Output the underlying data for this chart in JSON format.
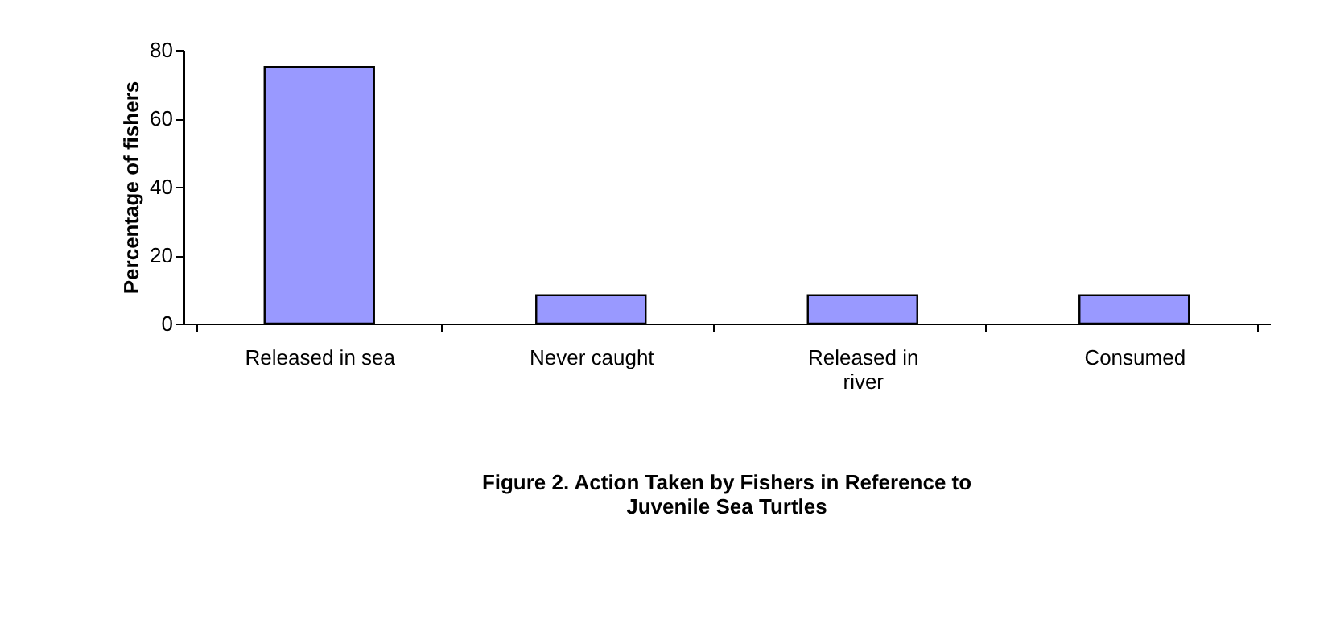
{
  "chart_data": {
    "type": "bar",
    "title": "Figure 2. Action Taken by Fishers in Reference to Juvenile Sea Turtles",
    "ylabel": "Percentage of fishers",
    "categories": [
      "Released in sea",
      "Never caught",
      "Released in river",
      "Consumed"
    ],
    "values": [
      75,
      8.3,
      8.3,
      8.3
    ],
    "color": "#9999ff",
    "ylim": [
      0,
      80
    ],
    "yticks": [
      0,
      20,
      40,
      60,
      80
    ],
    "grid": false
  }
}
